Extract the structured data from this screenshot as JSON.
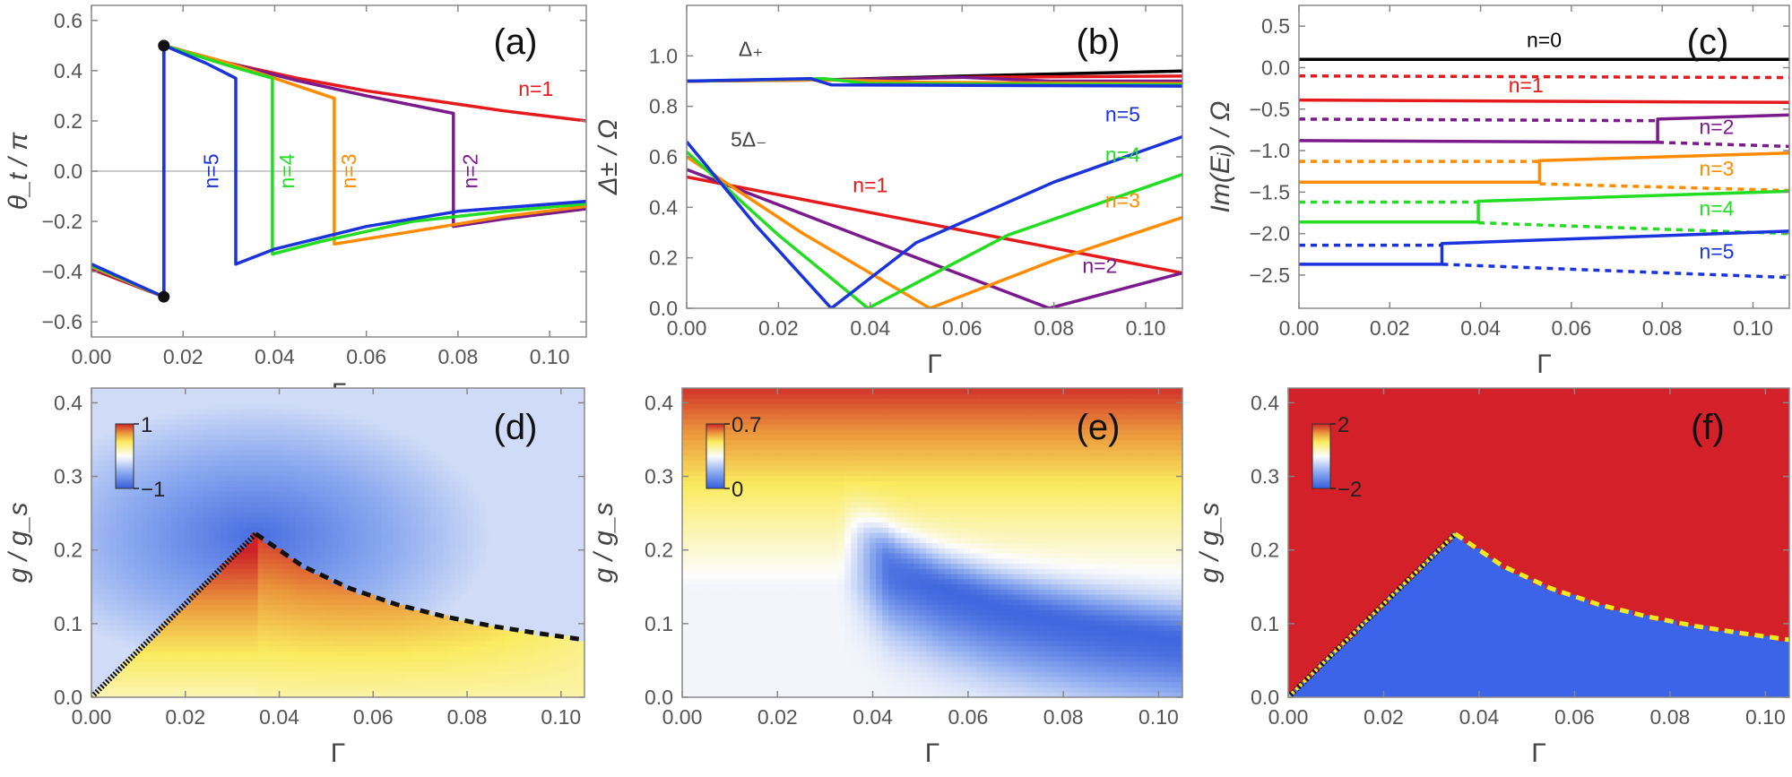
{
  "chart_data": [
    {
      "panel": "(a)",
      "type": "line",
      "xlabel": "Γ",
      "ylabel": "θ_t / π",
      "xlim": [
        0,
        0.108
      ],
      "ylim": [
        -0.66,
        0.66
      ],
      "xticks": [
        0,
        0.02,
        0.04,
        0.06,
        0.08,
        0.1
      ],
      "xtick_labels": [
        "0.00",
        "0.02",
        "0.04",
        "0.06",
        "0.08",
        "0.10"
      ],
      "yticks": [
        -0.6,
        -0.4,
        -0.2,
        0,
        0.2,
        0.4,
        0.6
      ],
      "ytick_labels": [
        "−0.6",
        "−0.4",
        "−0.2",
        "0.0",
        "0.2",
        "0.4",
        "0.6"
      ],
      "zero_line": true,
      "dots": [
        [
          0.0158,
          0.5
        ],
        [
          0.0158,
          -0.5
        ]
      ],
      "series": [
        {
          "name": "n=1",
          "color": "#e41a1c",
          "x": [
            0,
            0.0158,
            0.0158,
            0.03,
            0.045,
            0.06,
            0.075,
            0.09,
            0.108
          ],
          "y": [
            -0.39,
            -0.5,
            0.5,
            0.43,
            0.37,
            0.32,
            0.28,
            0.24,
            0.2
          ]
        },
        {
          "name": "n=2",
          "color": "#7b1a8c",
          "x": [
            0,
            0.0158,
            0.0158,
            0.03,
            0.045,
            0.06,
            0.079,
            0.079,
            0.09,
            0.108
          ],
          "y": [
            -0.385,
            -0.5,
            0.5,
            0.43,
            0.36,
            0.3,
            0.23,
            -0.22,
            -0.19,
            -0.15
          ]
        },
        {
          "name": "n=3",
          "color": "#ff8c00",
          "x": [
            0,
            0.0158,
            0.0158,
            0.03,
            0.04,
            0.053,
            0.053,
            0.07,
            0.09,
            0.108
          ],
          "y": [
            -0.38,
            -0.5,
            0.5,
            0.43,
            0.37,
            0.29,
            -0.29,
            -0.24,
            -0.18,
            -0.14
          ]
        },
        {
          "name": "n=4",
          "color": "#22dd22",
          "x": [
            0,
            0.0158,
            0.0158,
            0.03,
            0.0395,
            0.0395,
            0.05,
            0.07,
            0.09,
            0.108
          ],
          "y": [
            -0.375,
            -0.5,
            0.5,
            0.42,
            0.37,
            -0.33,
            -0.28,
            -0.2,
            -0.16,
            -0.13
          ]
        },
        {
          "name": "n=5",
          "color": "#1a33dd",
          "x": [
            0,
            0.0158,
            0.0158,
            0.025,
            0.0315,
            0.0315,
            0.04,
            0.06,
            0.08,
            0.108
          ],
          "y": [
            -0.37,
            -0.5,
            0.5,
            0.43,
            0.37,
            -0.37,
            -0.31,
            -0.22,
            -0.16,
            -0.12
          ]
        }
      ],
      "labels": [
        {
          "text": "n=1",
          "x": 0.097,
          "y": 0.3,
          "color": "#e41a1c"
        },
        {
          "text": "n=2",
          "x": 0.083,
          "y": 0.0,
          "color": "#7b1a8c",
          "rotate": true
        },
        {
          "text": "n=3",
          "x": 0.0565,
          "y": 0.0,
          "color": "#ff8c00",
          "rotate": true
        },
        {
          "text": "n=4",
          "x": 0.043,
          "y": 0.0,
          "color": "#22dd22",
          "rotate": true
        },
        {
          "text": "n=5",
          "x": 0.0265,
          "y": 0.0,
          "color": "#1a33dd",
          "rotate": true
        }
      ]
    },
    {
      "panel": "(b)",
      "type": "line",
      "xlabel": "Γ",
      "ylabel": "Δ± / Ω",
      "xlim": [
        0,
        0.108
      ],
      "ylim": [
        0,
        1.2
      ],
      "xticks": [
        0,
        0.02,
        0.04,
        0.06,
        0.08,
        0.1
      ],
      "xtick_labels": [
        "0.00",
        "0.02",
        "0.04",
        "0.06",
        "0.08",
        "0.10"
      ],
      "yticks": [
        0,
        0.2,
        0.4,
        0.6,
        0.8,
        1.0
      ],
      "ytick_labels": [
        "0.0",
        "0.2",
        "0.4",
        "0.6",
        "0.8",
        "1.0"
      ],
      "series": [
        {
          "name": "n=0",
          "color": "#000000",
          "x": [
            0,
            0.03,
            0.06,
            0.108
          ],
          "y": [
            0.9,
            0.905,
            0.92,
            0.94
          ]
        },
        {
          "name": "n=1",
          "color": "#e41a1c",
          "x": [
            0,
            0.03,
            0.06,
            0.108
          ],
          "y": [
            0.9,
            0.905,
            0.915,
            0.92
          ]
        },
        {
          "name": "n=2",
          "color": "#7b1a8c",
          "x": [
            0,
            0.03,
            0.06,
            0.079,
            0.108
          ],
          "y": [
            0.9,
            0.905,
            0.915,
            0.9,
            0.9
          ]
        },
        {
          "name": "n=3",
          "color": "#ff8c00",
          "x": [
            0,
            0.03,
            0.053,
            0.108
          ],
          "y": [
            0.9,
            0.905,
            0.895,
            0.89
          ]
        },
        {
          "name": "n=4",
          "color": "#22dd22",
          "x": [
            0,
            0.03,
            0.0395,
            0.108
          ],
          "y": [
            0.9,
            0.91,
            0.89,
            0.885
          ]
        },
        {
          "name": "n=5",
          "color": "#1a33dd",
          "x": [
            0,
            0.027,
            0.0315,
            0.108
          ],
          "y": [
            0.9,
            0.91,
            0.885,
            0.88
          ]
        },
        {
          "name": "n=1",
          "color": "#e41a1c",
          "x": [
            0,
            0.108
          ],
          "y": [
            0.52,
            0.14
          ]
        },
        {
          "name": "n=2",
          "color": "#7b1a8c",
          "x": [
            0,
            0.04,
            0.079,
            0.108
          ],
          "y": [
            0.55,
            0.27,
            0.0,
            0.14
          ]
        },
        {
          "name": "n=3",
          "color": "#ff8c00",
          "x": [
            0,
            0.025,
            0.053,
            0.08,
            0.108
          ],
          "y": [
            0.6,
            0.3,
            0.0,
            0.19,
            0.36
          ]
        },
        {
          "name": "n=4",
          "color": "#22dd22",
          "x": [
            0,
            0.02,
            0.0395,
            0.07,
            0.108
          ],
          "y": [
            0.62,
            0.29,
            0.0,
            0.29,
            0.53
          ]
        },
        {
          "name": "n=5",
          "color": "#1a33dd",
          "x": [
            0,
            0.015,
            0.0315,
            0.05,
            0.08,
            0.108
          ],
          "y": [
            0.66,
            0.33,
            0.0,
            0.26,
            0.5,
            0.68
          ]
        }
      ],
      "labels": [
        {
          "text": "Δ₊",
          "x": 0.014,
          "y": 1.0,
          "color": "#444444"
        },
        {
          "text": "5Δ₋",
          "x": 0.0135,
          "y": 0.64,
          "color": "#444444"
        },
        {
          "text": "n=1",
          "x": 0.04,
          "y": 0.46,
          "color": "#e41a1c"
        },
        {
          "text": "n=5",
          "x": 0.095,
          "y": 0.74,
          "color": "#1a33dd"
        },
        {
          "text": "n=4",
          "x": 0.095,
          "y": 0.58,
          "color": "#22dd22"
        },
        {
          "text": "n=3",
          "x": 0.095,
          "y": 0.4,
          "color": "#ff8c00"
        },
        {
          "text": "n=2",
          "x": 0.09,
          "y": 0.14,
          "color": "#7b1a8c"
        }
      ]
    },
    {
      "panel": "(c)",
      "type": "line",
      "xlabel": "Γ",
      "ylabel": "Im(Eᵢ) / Ω",
      "xlim": [
        0,
        0.108
      ],
      "ylim": [
        -2.9,
        0.75
      ],
      "xticks": [
        0,
        0.02,
        0.04,
        0.06,
        0.08,
        0.1
      ],
      "xtick_labels": [
        "0.00",
        "0.02",
        "0.04",
        "0.06",
        "0.08",
        "0.10"
      ],
      "yticks": [
        -2.5,
        -2,
        -1.5,
        -1,
        -0.5,
        0,
        0.5
      ],
      "ytick_labels": [
        "−2.5",
        "−2.0",
        "−1.5",
        "−1.0",
        "−0.5",
        "0.0",
        "0.5"
      ],
      "series": [
        {
          "name": "n=0",
          "color": "#000000",
          "dash": false,
          "x": [
            0,
            0.108
          ],
          "y": [
            0.1,
            0.1
          ]
        },
        {
          "name": "n=1",
          "color": "#e41a1c",
          "dash": true,
          "x": [
            0,
            0.108
          ],
          "y": [
            -0.1,
            -0.12
          ]
        },
        {
          "name": "n=1",
          "color": "#e41a1c",
          "dash": false,
          "x": [
            0,
            0.108
          ],
          "y": [
            -0.39,
            -0.42
          ]
        },
        {
          "name": "n=2",
          "color": "#7b1a8c",
          "dash": true,
          "x": [
            0,
            0.079
          ],
          "y": [
            -0.62,
            -0.64
          ]
        },
        {
          "name": "n=2",
          "color": "#7b1a8c",
          "dash": false,
          "x": [
            0,
            0.079,
            0.079,
            0.108
          ],
          "y": [
            -0.88,
            -0.9,
            -0.62,
            -0.57
          ]
        },
        {
          "name": "n=2",
          "color": "#7b1a8c",
          "dash": true,
          "x": [
            0.079,
            0.108
          ],
          "y": [
            -0.9,
            -0.95
          ]
        },
        {
          "name": "n=3",
          "color": "#ff8c00",
          "dash": true,
          "x": [
            0,
            0.053
          ],
          "y": [
            -1.13,
            -1.13
          ]
        },
        {
          "name": "n=3",
          "color": "#ff8c00",
          "dash": false,
          "x": [
            0,
            0.053,
            0.053,
            0.108
          ],
          "y": [
            -1.38,
            -1.38,
            -1.12,
            -1.03
          ]
        },
        {
          "name": "n=3",
          "color": "#ff8c00",
          "dash": true,
          "x": [
            0.053,
            0.108
          ],
          "y": [
            -1.4,
            -1.48
          ]
        },
        {
          "name": "n=4",
          "color": "#22dd22",
          "dash": true,
          "x": [
            0,
            0.0395
          ],
          "y": [
            -1.62,
            -1.62
          ]
        },
        {
          "name": "n=4",
          "color": "#22dd22",
          "dash": false,
          "x": [
            0,
            0.0395,
            0.0395,
            0.108
          ],
          "y": [
            -1.86,
            -1.86,
            -1.61,
            -1.49
          ]
        },
        {
          "name": "n=4",
          "color": "#22dd22",
          "dash": true,
          "x": [
            0.0395,
            0.108
          ],
          "y": [
            -1.87,
            -2.0
          ]
        },
        {
          "name": "n=5",
          "color": "#1a33dd",
          "dash": true,
          "x": [
            0,
            0.0315
          ],
          "y": [
            -2.14,
            -2.14
          ]
        },
        {
          "name": "n=5",
          "color": "#1a33dd",
          "dash": false,
          "x": [
            0,
            0.0315,
            0.0315,
            0.108
          ],
          "y": [
            -2.37,
            -2.37,
            -2.12,
            -1.97
          ]
        },
        {
          "name": "n=5",
          "color": "#1a33dd",
          "dash": true,
          "x": [
            0.0315,
            0.108
          ],
          "y": [
            -2.37,
            -2.53
          ]
        }
      ],
      "labels": [
        {
          "text": "n=0",
          "x": 0.054,
          "y": 0.25,
          "color": "#000000"
        },
        {
          "text": "n=1",
          "x": 0.05,
          "y": -0.3,
          "color": "#e41a1c"
        },
        {
          "text": "n=2",
          "x": 0.092,
          "y": -0.8,
          "color": "#7b1a8c"
        },
        {
          "text": "n=3",
          "x": 0.092,
          "y": -1.3,
          "color": "#ff8c00"
        },
        {
          "text": "n=4",
          "x": 0.092,
          "y": -1.78,
          "color": "#22dd22"
        },
        {
          "text": "n=5",
          "x": 0.092,
          "y": -2.3,
          "color": "#1a33dd"
        }
      ]
    },
    {
      "panel": "(d)",
      "type": "heatmap",
      "xlabel": "Γ",
      "ylabel": "g / g_s",
      "xlim": [
        0,
        0.105
      ],
      "ylim": [
        0,
        0.42
      ],
      "xticks": [
        0,
        0.02,
        0.04,
        0.06,
        0.08,
        0.1
      ],
      "xtick_labels": [
        "0.00",
        "0.02",
        "0.04",
        "0.06",
        "0.08",
        "0.10"
      ],
      "yticks": [
        0,
        0.1,
        0.2,
        0.3,
        0.4
      ],
      "ytick_labels": [
        "0.0",
        "0.1",
        "0.2",
        "0.3",
        "0.4"
      ],
      "colorbar": {
        "min_label": "−1",
        "max_label": "1"
      },
      "boundary_left": {
        "x": [
          0,
          0.035
        ],
        "y": [
          0,
          0.222
        ]
      },
      "boundary_right": {
        "x": [
          0.035,
          0.045,
          0.055,
          0.065,
          0.075,
          0.085,
          0.095,
          0.105
        ],
        "y": [
          0.222,
          0.178,
          0.148,
          0.126,
          0.11,
          0.097,
          0.087,
          0.078
        ]
      }
    },
    {
      "panel": "(e)",
      "type": "heatmap",
      "xlabel": "Γ",
      "ylabel": "g / g_s",
      "xlim": [
        0,
        0.105
      ],
      "ylim": [
        0,
        0.42
      ],
      "xticks": [
        0,
        0.02,
        0.04,
        0.06,
        0.08,
        0.1
      ],
      "xtick_labels": [
        "0.00",
        "0.02",
        "0.04",
        "0.06",
        "0.08",
        "0.10"
      ],
      "yticks": [
        0,
        0.1,
        0.2,
        0.3,
        0.4
      ],
      "ytick_labels": [
        "0.0",
        "0.1",
        "0.2",
        "0.3",
        "0.4"
      ],
      "colorbar": {
        "min_label": "0",
        "max_label": "0.7"
      },
      "valley": {
        "x": [
          0.035,
          0.045,
          0.055,
          0.065,
          0.075,
          0.085,
          0.095,
          0.105
        ],
        "y": [
          0.222,
          0.178,
          0.148,
          0.126,
          0.11,
          0.097,
          0.087,
          0.078
        ]
      }
    },
    {
      "panel": "(f)",
      "type": "heatmap",
      "xlabel": "Γ",
      "ylabel": "g / g_s",
      "xlim": [
        0,
        0.105
      ],
      "ylim": [
        0,
        0.42
      ],
      "xticks": [
        0,
        0.02,
        0.04,
        0.06,
        0.08,
        0.1
      ],
      "xtick_labels": [
        "0.00",
        "0.02",
        "0.04",
        "0.06",
        "0.08",
        "0.10"
      ],
      "yticks": [
        0,
        0.1,
        0.2,
        0.3,
        0.4
      ],
      "ytick_labels": [
        "0.0",
        "0.1",
        "0.2",
        "0.3",
        "0.4"
      ],
      "colorbar": {
        "min_label": "−2",
        "max_label": "2"
      },
      "colors": {
        "top": "#d42028",
        "bottom": "#3c64e8",
        "boundary": "#f2e820"
      },
      "boundary_left": {
        "x": [
          0,
          0.035
        ],
        "y": [
          0,
          0.222
        ]
      },
      "boundary_right": {
        "x": [
          0.035,
          0.045,
          0.055,
          0.065,
          0.075,
          0.085,
          0.095,
          0.105
        ],
        "y": [
          0.222,
          0.178,
          0.148,
          0.126,
          0.11,
          0.097,
          0.087,
          0.078
        ]
      }
    }
  ]
}
